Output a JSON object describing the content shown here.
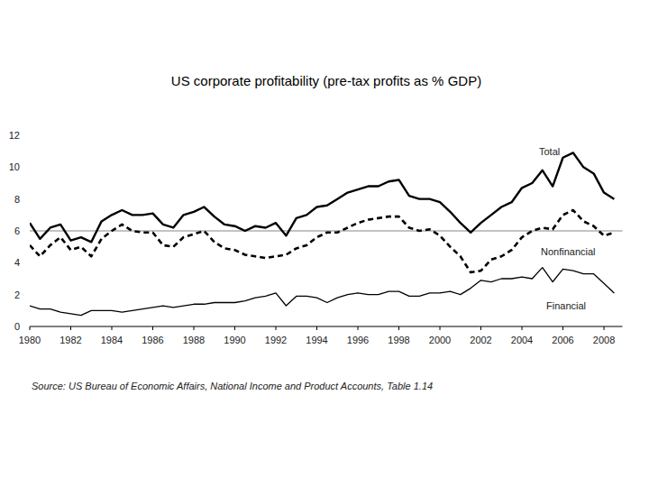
{
  "chart_data": {
    "type": "line",
    "title": "US corporate profitability (pre-tax profits as % GDP)",
    "source": "Source: US Bureau of Economic Affairs, National Income and Product Accounts, Table 1.14",
    "x": [
      1980.0,
      1980.5,
      1981.0,
      1981.5,
      1982.0,
      1982.5,
      1983.0,
      1983.5,
      1984.0,
      1984.5,
      1985.0,
      1985.5,
      1986.0,
      1986.5,
      1987.0,
      1987.5,
      1988.0,
      1988.5,
      1989.0,
      1989.5,
      1990.0,
      1990.5,
      1991.0,
      1991.5,
      1992.0,
      1992.5,
      1993.0,
      1993.5,
      1994.0,
      1994.5,
      1995.0,
      1995.5,
      1996.0,
      1996.5,
      1997.0,
      1997.5,
      1998.0,
      1998.5,
      1999.0,
      1999.5,
      2000.0,
      2000.5,
      2001.0,
      2001.5,
      2002.0,
      2002.5,
      2003.0,
      2003.5,
      2004.0,
      2004.5,
      2005.0,
      2005.5,
      2006.0,
      2006.5,
      2007.0,
      2007.5,
      2008.0,
      2008.5
    ],
    "series": [
      {
        "name": "Total",
        "color": "#000000",
        "line_style": "solid",
        "values": [
          6.5,
          5.5,
          6.2,
          6.4,
          5.4,
          5.6,
          5.3,
          6.6,
          7.0,
          7.3,
          7.0,
          7.0,
          7.1,
          6.4,
          6.2,
          7.0,
          7.2,
          7.5,
          6.9,
          6.4,
          6.3,
          6.0,
          6.3,
          6.2,
          6.5,
          5.7,
          6.8,
          7.0,
          7.5,
          7.6,
          8.0,
          8.4,
          8.6,
          8.8,
          8.8,
          9.1,
          9.2,
          8.2,
          8.0,
          8.0,
          7.8,
          7.2,
          6.5,
          5.9,
          6.5,
          7.0,
          7.5,
          7.8,
          8.7,
          9.0,
          9.8,
          8.8,
          10.6,
          10.9,
          10.0,
          9.6,
          8.4,
          8.0
        ]
      },
      {
        "name": "Nonfinancial",
        "color": "#000000",
        "line_style": "dashed",
        "values": [
          5.1,
          4.4,
          5.1,
          5.6,
          4.8,
          5.0,
          4.4,
          5.5,
          6.0,
          6.4,
          6.0,
          5.9,
          5.9,
          5.1,
          5.0,
          5.6,
          5.8,
          6.0,
          5.3,
          4.9,
          4.8,
          4.5,
          4.4,
          4.3,
          4.4,
          4.5,
          4.9,
          5.1,
          5.6,
          5.9,
          5.9,
          6.2,
          6.5,
          6.7,
          6.8,
          6.9,
          6.9,
          6.2,
          6.0,
          6.1,
          5.7,
          5.0,
          4.4,
          3.4,
          3.5,
          4.2,
          4.4,
          4.8,
          5.6,
          6.0,
          6.2,
          6.1,
          7.0,
          7.3,
          6.6,
          6.3,
          5.7,
          5.9
        ]
      },
      {
        "name": "Financial",
        "color": "#000000",
        "line_style": "solid",
        "values": [
          1.3,
          1.1,
          1.1,
          0.9,
          0.8,
          0.7,
          1.0,
          1.0,
          1.0,
          0.9,
          1.0,
          1.1,
          1.2,
          1.3,
          1.2,
          1.3,
          1.4,
          1.4,
          1.5,
          1.5,
          1.5,
          1.6,
          1.8,
          1.9,
          2.1,
          1.3,
          1.9,
          1.9,
          1.8,
          1.5,
          1.8,
          2.0,
          2.1,
          2.0,
          2.0,
          2.2,
          2.2,
          1.9,
          1.9,
          2.1,
          2.1,
          2.2,
          2.0,
          2.4,
          2.9,
          2.8,
          3.0,
          3.0,
          3.1,
          3.0,
          3.7,
          2.8,
          3.6,
          3.5,
          3.3,
          3.3,
          2.7,
          2.1
        ]
      }
    ],
    "hline": 6,
    "xlim": [
      1980,
      2008.9
    ],
    "xticks": [
      1980,
      1982,
      1984,
      1986,
      1988,
      1990,
      1992,
      1994,
      1996,
      1998,
      2000,
      2002,
      2004,
      2006,
      2008
    ],
    "ylim": [
      0,
      12
    ],
    "yticks": [
      0,
      2,
      4,
      6,
      8,
      10,
      12
    ],
    "grid": false
  }
}
